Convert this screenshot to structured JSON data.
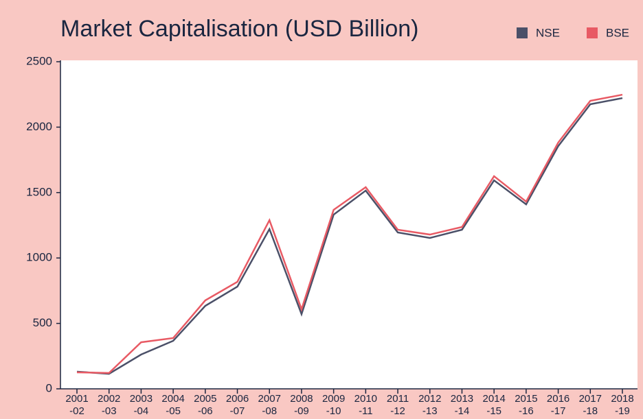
{
  "chart_data": {
    "type": "line",
    "title": "Market Capitalisation (USD Billion)",
    "categories": [
      [
        "2001",
        "-02"
      ],
      [
        "2002",
        "-03"
      ],
      [
        "2003",
        "-04"
      ],
      [
        "2004",
        "-05"
      ],
      [
        "2005",
        "-06"
      ],
      [
        "2006",
        "-07"
      ],
      [
        "2007",
        "-08"
      ],
      [
        "2008",
        "-09"
      ],
      [
        "2009",
        "-10"
      ],
      [
        "2010",
        "-11"
      ],
      [
        "2011",
        "-12"
      ],
      [
        "2012",
        "-13"
      ],
      [
        "2013",
        "-14"
      ],
      [
        "2014",
        "-15"
      ],
      [
        "2015",
        "-16"
      ],
      [
        "2016",
        "-17"
      ],
      [
        "2017",
        "-18"
      ],
      [
        "2018",
        "-19"
      ]
    ],
    "series": [
      {
        "name": "NSE",
        "color": "#4b5068",
        "values": [
          131,
          115,
          262,
          367,
          634,
          781,
          1221,
          571,
          1331,
          1515,
          1195,
          1153,
          1216,
          1593,
          1410,
          1855,
          2175,
          2222
        ]
      },
      {
        "name": "BSE",
        "color": "#e85a64",
        "values": [
          126,
          121,
          356,
          388,
          676,
          818,
          1289,
          608,
          1368,
          1541,
          1216,
          1179,
          1237,
          1625,
          1431,
          1882,
          2201,
          2248
        ]
      }
    ],
    "ylim": [
      0,
      2500
    ],
    "yticks": [
      0,
      500,
      1000,
      1500,
      2000,
      2500
    ],
    "legend": "top-right"
  }
}
